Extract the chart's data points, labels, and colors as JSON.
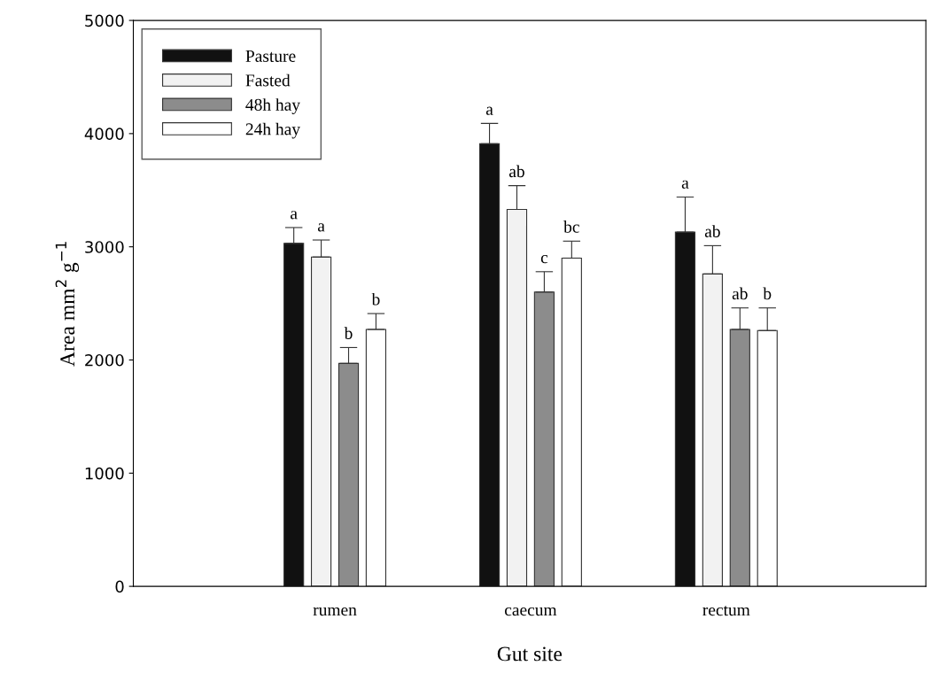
{
  "chart_data": {
    "type": "bar",
    "xlabel": "Gut site",
    "ylabel": "Area mm$^{2}$ g$^{−1}$",
    "categories": [
      "rumen",
      "caecum",
      "rectum"
    ],
    "series": [
      {
        "name": "Pasture",
        "color": "#111111",
        "values": [
          3030,
          3910,
          3130
        ],
        "errors": [
          140,
          180,
          310
        ],
        "value_labels": [
          "a",
          "a",
          "a"
        ]
      },
      {
        "name": "Fasted",
        "color": "#f2f2f2",
        "values": [
          2910,
          3330,
          2760
        ],
        "errors": [
          150,
          210,
          250
        ],
        "value_labels": [
          "a",
          "ab",
          "ab"
        ]
      },
      {
        "name": "48h hay",
        "color": "#8c8c8c",
        "values": [
          1970,
          2600,
          2270
        ],
        "errors": [
          140,
          180,
          190
        ],
        "value_labels": [
          "b",
          "c",
          "ab"
        ]
      },
      {
        "name": "24h hay",
        "color": "#ffffff",
        "values": [
          2270,
          2900,
          2260
        ],
        "errors": [
          140,
          150,
          200
        ],
        "value_labels": [
          "b",
          "bc",
          "b"
        ]
      }
    ],
    "ylim": [
      0,
      5000
    ],
    "yticks": [
      0,
      1000,
      2000,
      3000,
      4000,
      5000
    ],
    "grid": false,
    "legend": "top left"
  }
}
